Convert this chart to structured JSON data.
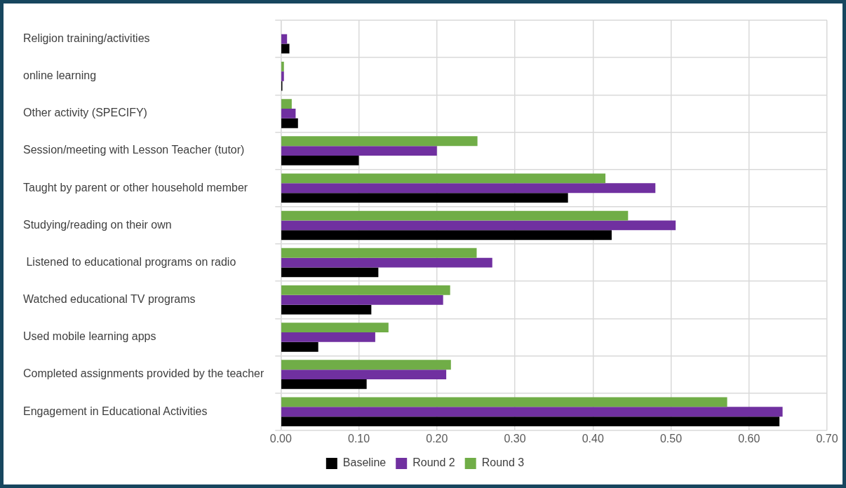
{
  "chart_data": {
    "type": "bar",
    "orientation": "horizontal",
    "categories": [
      "Religion training/activities",
      "online learning",
      "Other activity (SPECIFY)",
      "Session/meeting with Lesson Teacher (tutor)",
      "Taught by parent or other household member",
      "Studying/reading on their own",
      " Listened to educational programs on radio",
      "Watched educational TV programs",
      "Used mobile learning apps",
      "Completed assignments provided by the teacher",
      "Engagement in Educational Activities"
    ],
    "series": [
      {
        "name": "Baseline",
        "color": "#000000",
        "values": [
          0.011,
          0.002,
          0.022,
          0.1,
          0.368,
          0.424,
          0.125,
          0.116,
          0.048,
          0.11,
          0.639
        ]
      },
      {
        "name": "Round 2",
        "color": "#7030a0",
        "values": [
          0.008,
          0.004,
          0.019,
          0.2,
          0.48,
          0.506,
          0.271,
          0.208,
          0.121,
          0.212,
          0.643
        ]
      },
      {
        "name": "Round 3",
        "color": "#70ad47",
        "values": [
          0,
          0.004,
          0.014,
          0.252,
          0.416,
          0.445,
          0.251,
          0.217,
          0.138,
          0.218,
          0.572
        ]
      }
    ],
    "xlim": [
      0,
      0.7
    ],
    "xticks": [
      {
        "value": 0,
        "label": "0.00"
      },
      {
        "value": 0.1,
        "label": "0.10"
      },
      {
        "value": 0.2,
        "label": "0.20"
      },
      {
        "value": 0.3,
        "label": "0.30"
      },
      {
        "value": 0.4,
        "label": "0.40"
      },
      {
        "value": 0.5,
        "label": "0.50"
      },
      {
        "value": 0.6,
        "label": "0.60"
      },
      {
        "value": 0.7,
        "label": "0.70"
      }
    ],
    "grid": true,
    "legend": "bottom"
  }
}
